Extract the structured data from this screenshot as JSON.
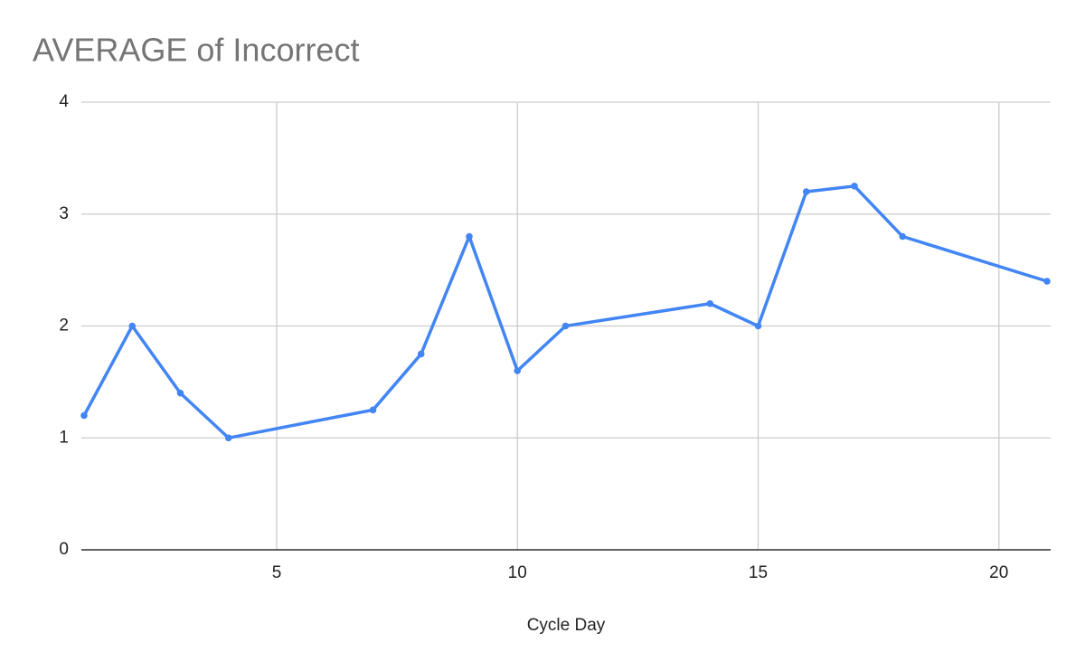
{
  "chart_data": {
    "type": "line",
    "title": "AVERAGE of Incorrect",
    "x_label": "Cycle Day",
    "x": [
      1,
      2,
      3,
      4,
      7,
      8,
      9,
      10,
      11,
      14,
      15,
      16,
      17,
      18,
      21
    ],
    "values": [
      1.2,
      2,
      1.4,
      1,
      1.25,
      1.75,
      2.8,
      1.6,
      2,
      2.2,
      2,
      3.2,
      3.25,
      2.8,
      2.4
    ],
    "color": "#4285f4",
    "xlim": [
      1,
      21
    ],
    "xticks": [
      5,
      10,
      15,
      20
    ],
    "ylim": [
      0,
      4
    ],
    "yticks": [
      0,
      1,
      2,
      3,
      4
    ],
    "grid": true
  }
}
